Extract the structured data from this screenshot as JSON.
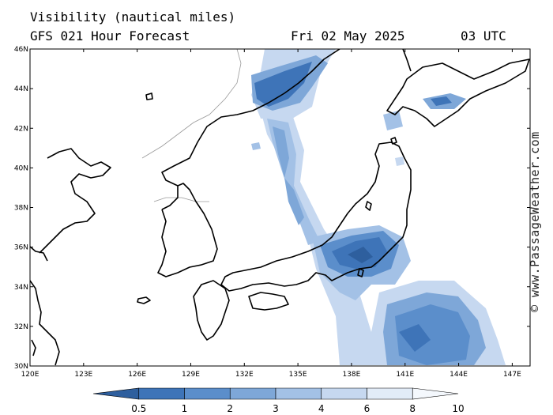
{
  "header": {
    "title": "Visibility (nautical miles)",
    "subtitle": "GFS 021 Hour Forecast",
    "date": "Fri 02 May 2025",
    "time": "03 UTC"
  },
  "credit": "© www.PassageWeather.com",
  "axes": {
    "lat_labels": [
      "46N",
      "44N",
      "42N",
      "40N",
      "38N",
      "36N",
      "34N",
      "32N",
      "30N"
    ],
    "lon_labels": [
      "120E",
      "123E",
      "126E",
      "129E",
      "132E",
      "135E",
      "138E",
      "141E",
      "144E",
      "147E"
    ],
    "lat_range": [
      30,
      46
    ],
    "lon_range": [
      120,
      148
    ]
  },
  "colorbar": {
    "labels": [
      "0.5",
      "1",
      "2",
      "3",
      "4",
      "6",
      "8",
      "10"
    ],
    "colors": [
      "#2e5f9e",
      "#3e74b8",
      "#5b8ecb",
      "#7ea7d8",
      "#a3c1e6",
      "#c6d8f0",
      "#e2ecf8",
      "#f4f8fd"
    ]
  }
}
